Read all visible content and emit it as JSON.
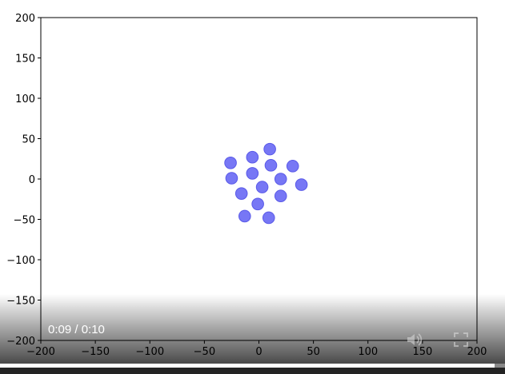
{
  "chart_data": {
    "type": "scatter",
    "xlim": [
      -200,
      200
    ],
    "ylim": [
      -200,
      200
    ],
    "xticks": [
      "−200",
      "−150",
      "−100",
      "−50",
      "0",
      "50",
      "100",
      "150",
      "200"
    ],
    "yticks": [
      "200",
      "150",
      "100",
      "50",
      "0",
      "−50",
      "−100",
      "−150",
      "−200"
    ],
    "grid": false,
    "marker_color": "#7777f5",
    "points": [
      [
        10,
        37
      ],
      [
        -26,
        20
      ],
      [
        -6,
        27
      ],
      [
        11,
        17
      ],
      [
        31,
        16
      ],
      [
        -25,
        1
      ],
      [
        -6,
        7
      ],
      [
        20,
        0
      ],
      [
        39,
        -7
      ],
      [
        3,
        -10
      ],
      [
        -16,
        -18
      ],
      [
        20,
        -21
      ],
      [
        -1,
        -31
      ],
      [
        -13,
        -46
      ],
      [
        9,
        -48
      ]
    ]
  },
  "player": {
    "time": "0:09 / 0:10",
    "progress": 0.98,
    "volume_icon": "speaker-icon",
    "fullscreen_icon": "fullscreen-icon"
  }
}
